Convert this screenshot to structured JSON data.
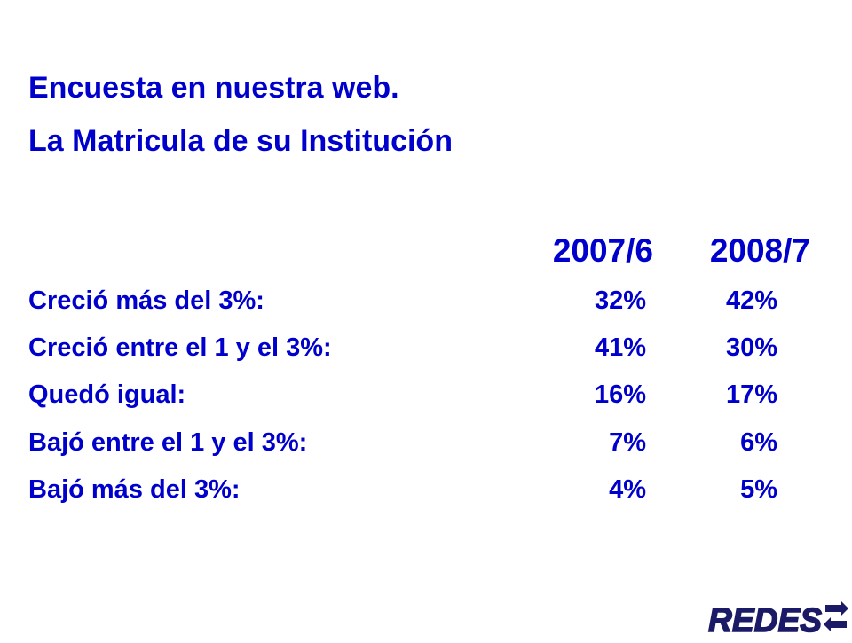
{
  "title": {
    "line1": "Encuesta en nuestra web.",
    "line2": "La Matricula de su Institución"
  },
  "columns": [
    "2007/6",
    "2008/7"
  ],
  "rows": [
    {
      "label": "Creció más del 3%:",
      "values": [
        "32%",
        "42%"
      ]
    },
    {
      "label": "Creció entre el 1 y el 3%:",
      "values": [
        "41%",
        "30%"
      ]
    },
    {
      "label": "Quedó igual:",
      "values": [
        "16%",
        "17%"
      ]
    },
    {
      "label": "Bajó entre el 1 y el 3%:",
      "values": [
        "7%",
        "6%"
      ]
    },
    {
      "label": "Bajó más del 3%:",
      "values": [
        "4%",
        "5%"
      ]
    }
  ],
  "logo": {
    "text": "REDES",
    "icon": "arrows-icon"
  },
  "colors": {
    "text": "#0000cc",
    "logo_navy": "#1a1a66",
    "background": "#ffffff"
  }
}
